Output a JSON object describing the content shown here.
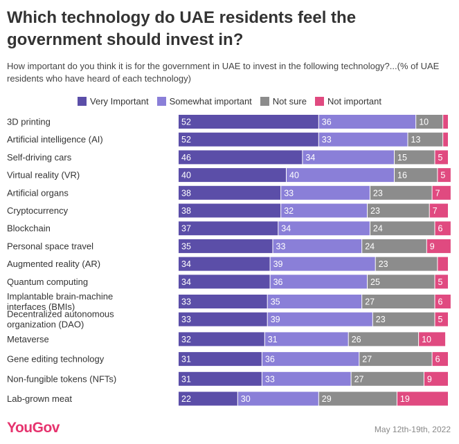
{
  "title": "Which technology do UAE residents feel the government should invest in?",
  "subtitle": "How important do you think it is for the government in UAE to invest in the following technology?...(% of UAE residents who have heard of each technology)",
  "footer": {
    "logo": "YouGov",
    "date": "May 12th-19th, 2022"
  },
  "chart_data": {
    "type": "bar",
    "orientation": "horizontal",
    "stacked": true,
    "xlim": [
      0,
      100
    ],
    "grid": false,
    "legend_position": "top",
    "categories": [
      "3D printing",
      "Artificial intelligence (AI)",
      "Self-driving cars",
      "Virtual reality (VR)",
      "Artificial organs",
      "Cryptocurrency",
      "Blockchain",
      "Personal space travel",
      "Augmented reality (AR)",
      "Quantum computing",
      "Implantable brain-machine interfaces (BMIs)",
      "Decentralized autonomous organization (DAO)",
      "Metaverse",
      "Gene editing technology",
      "Non-fungible tokens (NFTs)",
      "Lab-grown meat"
    ],
    "series": [
      {
        "name": "Very Important",
        "color": "#5b4ea8",
        "values": [
          52,
          52,
          46,
          40,
          38,
          38,
          37,
          35,
          34,
          34,
          33,
          33,
          32,
          31,
          31,
          22
        ],
        "labels": [
          "52",
          "52",
          "46",
          "40",
          "38",
          "38",
          "37",
          "35",
          "34",
          "34",
          "33",
          "33",
          "32",
          "31",
          "31",
          "22"
        ]
      },
      {
        "name": "Somewhat important",
        "color": "#8a7fd8",
        "values": [
          36,
          33,
          34,
          40,
          33,
          32,
          34,
          33,
          39,
          36,
          35,
          39,
          31,
          36,
          33,
          30
        ],
        "labels": [
          "36",
          "33",
          "34",
          "40",
          "33",
          "32",
          "34",
          "33",
          "39",
          "36",
          "35",
          "39",
          "31",
          "36",
          "33",
          "30"
        ]
      },
      {
        "name": "Not sure",
        "color": "#8c8c8c",
        "values": [
          10,
          13,
          15,
          16,
          23,
          23,
          24,
          24,
          23,
          25,
          27,
          23,
          26,
          27,
          27,
          29
        ],
        "labels": [
          "10",
          "13",
          "15",
          "16",
          "23",
          "23",
          "24",
          "24",
          "23",
          "25",
          "27",
          "23",
          "26",
          "27",
          "27",
          "29"
        ]
      },
      {
        "name": "Not important",
        "color": "#e04a80",
        "values": [
          2,
          2,
          5,
          5,
          7,
          7,
          6,
          9,
          4,
          5,
          6,
          5,
          10,
          6,
          9,
          19
        ],
        "labels": [
          "",
          "",
          "5",
          "5",
          "7",
          "7",
          "6",
          "9",
          "",
          "5",
          "6",
          "5",
          "10",
          "6",
          "9",
          "19"
        ]
      }
    ]
  }
}
